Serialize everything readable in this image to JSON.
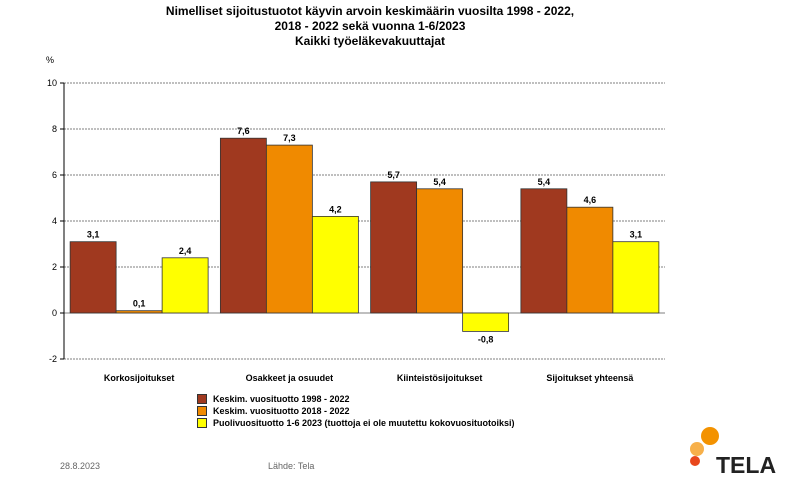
{
  "title_lines": [
    "Nimelliset sijoitustuotot käyvin arvoin keskimäärin vuosilta 1998 - 2022,",
    "2018 - 2022 sekä vuonna 1-6/2023",
    "Kaikki työeläkevakuuttajat"
  ],
  "footer": {
    "date": "28.8.2023",
    "source": "Lähde: Tela"
  },
  "logo": {
    "text": "TELA",
    "dot_colors": [
      "#f39200",
      "#f7b04a",
      "#e8471c"
    ]
  },
  "chart_data": {
    "type": "bar",
    "ylabel": "%",
    "ylim": [
      -2,
      10
    ],
    "yticks": [
      -2,
      0,
      2,
      4,
      6,
      8,
      10
    ],
    "grid": true,
    "categories": [
      "Korkosijoitukset",
      "Osakkeet ja osuudet",
      "Kiinteistösijoitukset",
      "Sijoitukset yhteensä"
    ],
    "series": [
      {
        "name": "Keskim. vuosituotto 1998 - 2022",
        "color": "#a0391f",
        "values": [
          3.1,
          7.6,
          5.7,
          5.4
        ],
        "labels": [
          "3,1",
          "7,6",
          "5,7",
          "5,4"
        ]
      },
      {
        "name": "Keskim. vuosituotto 2018 - 2022",
        "color": "#f08a00",
        "values": [
          0.1,
          7.3,
          5.4,
          4.6
        ],
        "labels": [
          "0,1",
          "7,3",
          "5,4",
          "4,6"
        ]
      },
      {
        "name": "Puolivuosituotto 1-6 2023 (tuottoja ei ole muutettu kokovuosituotoiksi)",
        "color": "#ffff00",
        "values": [
          2.4,
          4.2,
          -0.8,
          3.1
        ],
        "labels": [
          "2,4",
          "4,2",
          "-0,8",
          "3,1"
        ]
      }
    ],
    "legend_position": "bottom-left"
  }
}
